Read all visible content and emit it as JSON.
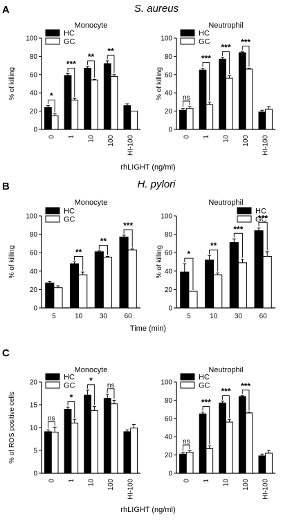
{
  "figure": {
    "panels": [
      {
        "letter": "A",
        "title": "S. aureus",
        "xlabel": "rhLIGHT (ng/ml)"
      },
      {
        "letter": "B",
        "title": "H. pylori",
        "xlabel": "Time (min)"
      },
      {
        "letter": "C",
        "title": "",
        "xlabel": "rhLIGHT (ng/ml)"
      }
    ]
  },
  "chart_data": [
    {
      "type": "bar",
      "panel": "A",
      "title": "Monocyte",
      "ylabel": "% of killing",
      "ylim": [
        0,
        100
      ],
      "yticks": [
        0,
        20,
        40,
        60,
        80,
        100
      ],
      "categories": [
        "0",
        "1",
        "10",
        "100",
        "HI-100"
      ],
      "rotated_ticks": true,
      "series": [
        {
          "name": "HC",
          "color": "#000000",
          "values": [
            24,
            59,
            67,
            72,
            26
          ],
          "err": [
            2,
            2,
            2,
            3,
            2
          ]
        },
        {
          "name": "GC",
          "color": "#ffffff",
          "values": [
            15,
            32,
            54,
            58,
            20
          ],
          "err": [
            2,
            2,
            1,
            2,
            0
          ]
        }
      ],
      "sig": [
        "*",
        "***",
        "**",
        "**",
        ""
      ],
      "legend": "top-left"
    },
    {
      "type": "bar",
      "panel": "A",
      "title": "Neutrophil",
      "ylabel": "% of killing",
      "ylim": [
        0,
        100
      ],
      "yticks": [
        0,
        20,
        40,
        60,
        80,
        100
      ],
      "categories": [
        "0",
        "1",
        "10",
        "100",
        "HI-100"
      ],
      "rotated_ticks": true,
      "series": [
        {
          "name": "HC",
          "color": "#000000",
          "values": [
            21,
            65,
            77,
            84,
            19
          ],
          "err": [
            2,
            2,
            2,
            1,
            2
          ]
        },
        {
          "name": "GC",
          "color": "#ffffff",
          "values": [
            23,
            27,
            56,
            66,
            22
          ],
          "err": [
            2,
            3,
            3,
            1,
            3
          ]
        }
      ],
      "sig": [
        "ns",
        "***",
        "***",
        "***",
        ""
      ],
      "legend": "top-left"
    },
    {
      "type": "bar",
      "panel": "B",
      "title": "Monocyte",
      "ylabel": "% of killing",
      "ylim": [
        0,
        100
      ],
      "yticks": [
        0,
        20,
        40,
        60,
        80,
        100
      ],
      "categories": [
        "5",
        "10",
        "30",
        "60"
      ],
      "rotated_ticks": false,
      "series": [
        {
          "name": "HC",
          "color": "#000000",
          "values": [
            27,
            48,
            61,
            77
          ],
          "err": [
            2,
            2,
            1,
            2
          ]
        },
        {
          "name": "GC",
          "color": "#ffffff",
          "values": [
            22,
            36,
            55,
            63
          ],
          "err": [
            2,
            3,
            1,
            1
          ]
        }
      ],
      "sig": [
        "",
        "**",
        "**",
        "***"
      ],
      "legend": "top-left"
    },
    {
      "type": "bar",
      "panel": "B",
      "title": "Neutrophil",
      "ylabel": "% of killing",
      "ylim": [
        0,
        100
      ],
      "yticks": [
        0,
        20,
        40,
        60,
        80,
        100
      ],
      "categories": [
        "5",
        "10",
        "30",
        "60"
      ],
      "rotated_ticks": false,
      "series": [
        {
          "name": "HC",
          "color": "#000000",
          "values": [
            39,
            52,
            71,
            84
          ],
          "err": [
            9,
            5,
            4,
            3
          ]
        },
        {
          "name": "GC",
          "color": "#ffffff",
          "values": [
            18,
            36,
            49,
            56
          ],
          "err": [
            0,
            2,
            4,
            5
          ]
        }
      ],
      "sig": [
        "*",
        "**",
        "***",
        "***"
      ],
      "legend": "top-right"
    },
    {
      "type": "bar",
      "panel": "C",
      "title": "Monocyte",
      "ylabel": "% of ROS positive cells",
      "ylim": [
        0,
        20
      ],
      "yticks": [
        0,
        5,
        10,
        15,
        20
      ],
      "categories": [
        "0",
        "1",
        "10",
        "100",
        "HI-100"
      ],
      "rotated_ticks": true,
      "series": [
        {
          "name": "HC",
          "color": "#000000",
          "values": [
            9.1,
            14,
            17.1,
            16.4,
            9.1
          ],
          "err": [
            0.4,
            0.5,
            1.1,
            0.9,
            0.4
          ]
        },
        {
          "name": "GC",
          "color": "#ffffff",
          "values": [
            9,
            11,
            13.7,
            15.2,
            9.9
          ],
          "err": [
            1.1,
            0.8,
            0.9,
            0.8,
            0.8
          ]
        }
      ],
      "sig": [
        "ns",
        "*",
        "*",
        "ns",
        ""
      ],
      "legend": "top-left"
    },
    {
      "type": "bar",
      "panel": "C",
      "title": "Neutrophil",
      "ylabel": "",
      "ylim": [
        0,
        100
      ],
      "yticks": [
        0,
        20,
        40,
        60,
        80,
        100
      ],
      "categories": [
        "0",
        "1",
        "10",
        "100",
        "HI-100"
      ],
      "rotated_ticks": true,
      "series": [
        {
          "name": "HC",
          "color": "#000000",
          "values": [
            21,
            65,
            77,
            84,
            19
          ],
          "err": [
            2,
            2,
            2,
            1,
            2
          ]
        },
        {
          "name": "GC",
          "color": "#ffffff",
          "values": [
            23,
            27,
            56,
            66,
            22
          ],
          "err": [
            2,
            3,
            3,
            1,
            3
          ]
        }
      ],
      "sig": [
        "ns",
        "***",
        "***",
        "***",
        ""
      ],
      "legend": "top-left"
    }
  ]
}
